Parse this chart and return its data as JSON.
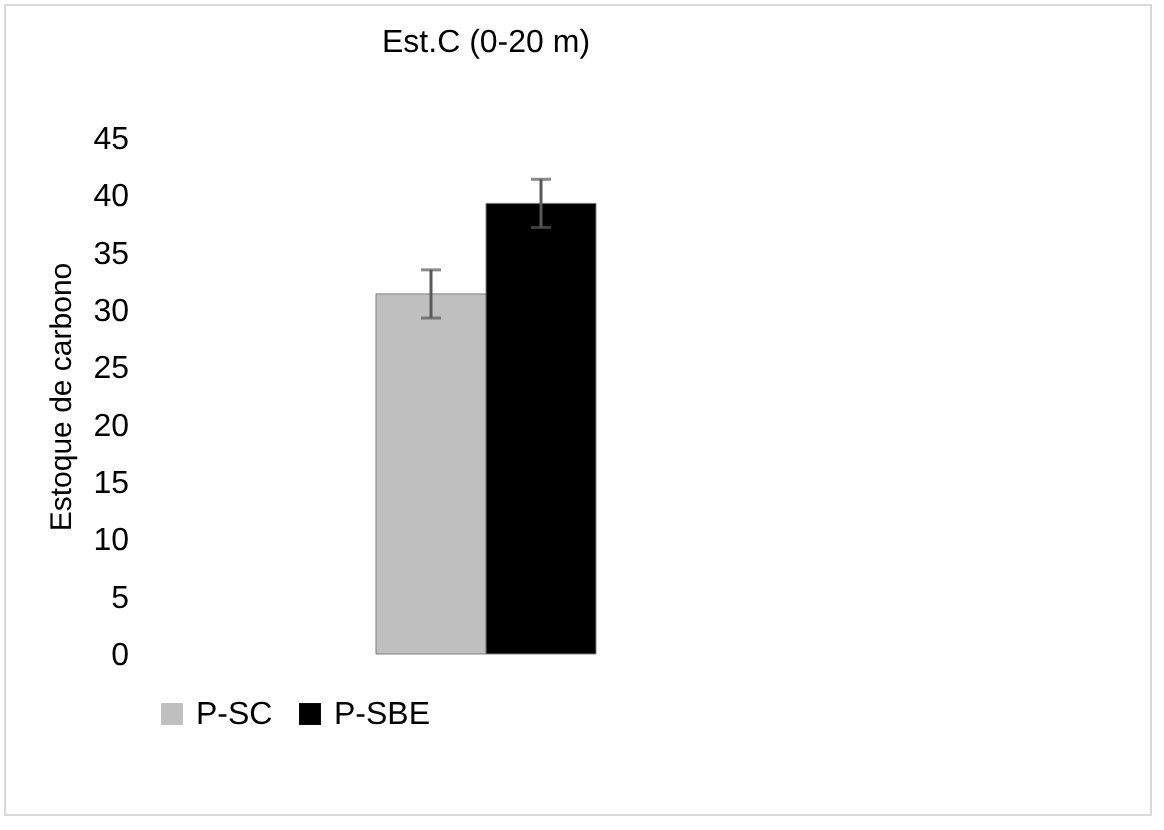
{
  "chart_data": {
    "type": "bar",
    "title": "Est.C (0-20 m)",
    "ylabel": "Estoque de carbono",
    "categories": [
      null
    ],
    "series": [
      {
        "name": "P-SC",
        "color": "#bfbfbf",
        "values": [
          31.4
        ],
        "errors": [
          2.1
        ]
      },
      {
        "name": "P-SBE",
        "color": "#000000",
        "values": [
          39.3
        ],
        "errors": [
          2.1
        ]
      }
    ],
    "ylim": [
      0,
      45
    ],
    "yticks": [
      0,
      5,
      10,
      15,
      20,
      25,
      30,
      35,
      40,
      45
    ],
    "grid": false,
    "legend": "bottom",
    "tick_labels": "y"
  }
}
